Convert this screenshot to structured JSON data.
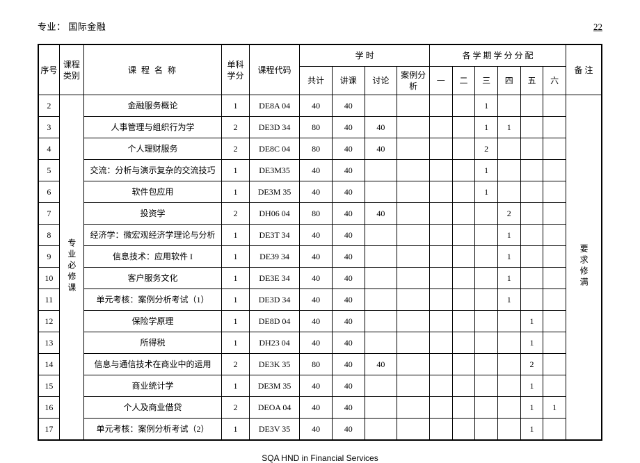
{
  "header": {
    "major_label": "专业：  国际金融",
    "page_no": "22"
  },
  "footer": "SQA HND in Financial Services",
  "columns": {
    "seq": "序号",
    "category": "课程类别",
    "course_name": "课 程 名 称",
    "credit": "单科学分",
    "code": "课程代码",
    "hours_group": "学  时",
    "hours_total": "共计",
    "hours_lecture": "讲课",
    "hours_discuss": "讨论",
    "hours_case": "案例分析",
    "sem_group": "各 学 期 学 分 分 配",
    "sem1": "一",
    "sem2": "二",
    "sem3": "三",
    "sem4": "四",
    "sem5": "五",
    "sem6": "六",
    "note": "备 注"
  },
  "category_text": "专业必修课",
  "note_text": "要求修满",
  "rows": [
    {
      "seq": "2",
      "name": "金融服务概论",
      "credit": "1",
      "code": "DE8A 04",
      "t": "40",
      "lec": "40",
      "dis": "",
      "cs": "",
      "s1": "",
      "s2": "",
      "s3": "1",
      "s4": "",
      "s5": "",
      "s6": ""
    },
    {
      "seq": "3",
      "name": "人事管理与组织行为学",
      "credit": "2",
      "code": "DE3D 34",
      "t": "80",
      "lec": "40",
      "dis": "40",
      "cs": "",
      "s1": "",
      "s2": "",
      "s3": "1",
      "s4": "1",
      "s5": "",
      "s6": ""
    },
    {
      "seq": "4",
      "name": "个人理财服务",
      "credit": "2",
      "code": "DE8C 04",
      "t": "80",
      "lec": "40",
      "dis": "40",
      "cs": "",
      "s1": "",
      "s2": "",
      "s3": "2",
      "s4": "",
      "s5": "",
      "s6": ""
    },
    {
      "seq": "5",
      "name": "交流：分析与演示复杂的交流技巧",
      "credit": "1",
      "code": "DE3M35",
      "t": "40",
      "lec": "40",
      "dis": "",
      "cs": "",
      "s1": "",
      "s2": "",
      "s3": "1",
      "s4": "",
      "s5": "",
      "s6": ""
    },
    {
      "seq": "6",
      "name": "软件包应用",
      "credit": "1",
      "code": "DE3M 35",
      "t": "40",
      "lec": "40",
      "dis": "",
      "cs": "",
      "s1": "",
      "s2": "",
      "s3": "1",
      "s4": "",
      "s5": "",
      "s6": ""
    },
    {
      "seq": "7",
      "name": "投资学",
      "credit": "2",
      "code": "DH06 04",
      "t": "80",
      "lec": "40",
      "dis": "40",
      "cs": "",
      "s1": "",
      "s2": "",
      "s3": "",
      "s4": "2",
      "s5": "",
      "s6": ""
    },
    {
      "seq": "8",
      "name": "经济学：微宏观经济学理论与分析",
      "credit": "1",
      "code": "DE3T 34",
      "t": "40",
      "lec": "40",
      "dis": "",
      "cs": "",
      "s1": "",
      "s2": "",
      "s3": "",
      "s4": "1",
      "s5": "",
      "s6": ""
    },
    {
      "seq": "9",
      "name": "信息技术：应用软件 I",
      "credit": "1",
      "code": "DE39 34",
      "t": "40",
      "lec": "40",
      "dis": "",
      "cs": "",
      "s1": "",
      "s2": "",
      "s3": "",
      "s4": "1",
      "s5": "",
      "s6": ""
    },
    {
      "seq": "10",
      "name": "客户服务文化",
      "credit": "1",
      "code": "DE3E 34",
      "t": "40",
      "lec": "40",
      "dis": "",
      "cs": "",
      "s1": "",
      "s2": "",
      "s3": "",
      "s4": "1",
      "s5": "",
      "s6": ""
    },
    {
      "seq": "11",
      "name": "单元考核：案例分析考试（1）",
      "credit": "1",
      "code": "DE3D 34",
      "t": "40",
      "lec": "40",
      "dis": "",
      "cs": "",
      "s1": "",
      "s2": "",
      "s3": "",
      "s4": "1",
      "s5": "",
      "s6": ""
    },
    {
      "seq": "12",
      "name": "保险学原理",
      "credit": "1",
      "code": "DE8D 04",
      "t": "40",
      "lec": "40",
      "dis": "",
      "cs": "",
      "s1": "",
      "s2": "",
      "s3": "",
      "s4": "",
      "s5": "1",
      "s6": ""
    },
    {
      "seq": "13",
      "name": "所得税",
      "credit": "1",
      "code": "DH23 04",
      "t": "40",
      "lec": "40",
      "dis": "",
      "cs": "",
      "s1": "",
      "s2": "",
      "s3": "",
      "s4": "",
      "s5": "1",
      "s6": ""
    },
    {
      "seq": "14",
      "name": "信息与通信技术在商业中的运用",
      "credit": "2",
      "code": "DE3K 35",
      "t": "80",
      "lec": "40",
      "dis": "40",
      "cs": "",
      "s1": "",
      "s2": "",
      "s3": "",
      "s4": "",
      "s5": "2",
      "s6": ""
    },
    {
      "seq": "15",
      "name": "商业统计学",
      "credit": "1",
      "code": "DE3M 35",
      "t": "40",
      "lec": "40",
      "dis": "",
      "cs": "",
      "s1": "",
      "s2": "",
      "s3": "",
      "s4": "",
      "s5": "1",
      "s6": ""
    },
    {
      "seq": "16",
      "name": "个人及商业借贷",
      "credit": "2",
      "code": "DEOA 04",
      "t": "40",
      "lec": "40",
      "dis": "",
      "cs": "",
      "s1": "",
      "s2": "",
      "s3": "",
      "s4": "",
      "s5": "1",
      "s6": "1"
    },
    {
      "seq": "17",
      "name": "单元考核：案例分析考试（2）",
      "credit": "1",
      "code": "DE3V 35",
      "t": "40",
      "lec": "40",
      "dis": "",
      "cs": "",
      "s1": "",
      "s2": "",
      "s3": "",
      "s4": "",
      "s5": "1",
      "s6": ""
    }
  ]
}
